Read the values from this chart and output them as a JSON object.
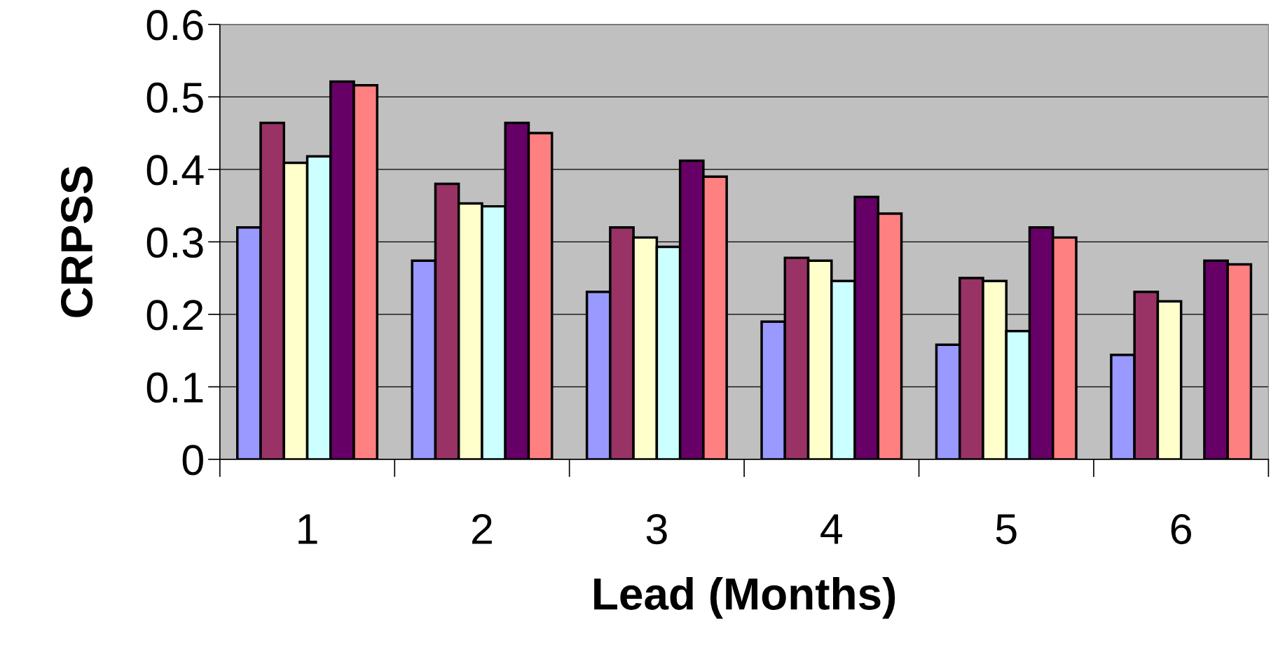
{
  "chart_data": {
    "type": "bar",
    "xlabel": "Lead (Months)",
    "ylabel": "CRPSS",
    "categories": [
      "1",
      "2",
      "3",
      "4",
      "5",
      "6"
    ],
    "series": [
      {
        "color": "#9999ff",
        "values": [
          0.32,
          0.274,
          0.231,
          0.19,
          0.158,
          0.144
        ]
      },
      {
        "color": "#993366",
        "values": [
          0.464,
          0.38,
          0.32,
          0.278,
          0.25,
          0.231
        ]
      },
      {
        "color": "#ffffcc",
        "values": [
          0.409,
          0.353,
          0.306,
          0.274,
          0.246,
          0.218
        ]
      },
      {
        "color": "#ccffff",
        "values": [
          0.418,
          0.349,
          0.293,
          0.246,
          0.177,
          null
        ]
      },
      {
        "color": "#660066",
        "values": [
          0.521,
          0.464,
          0.412,
          0.362,
          0.32,
          0.274
        ]
      },
      {
        "color": "#ff8080",
        "values": [
          0.516,
          0.45,
          0.39,
          0.339,
          0.306,
          0.269
        ]
      }
    ],
    "ylim": [
      0,
      0.6
    ],
    "yticks": [
      0,
      0.1,
      0.2,
      0.3,
      0.4,
      0.5,
      0.6
    ],
    "grid": "y",
    "legend": false
  }
}
